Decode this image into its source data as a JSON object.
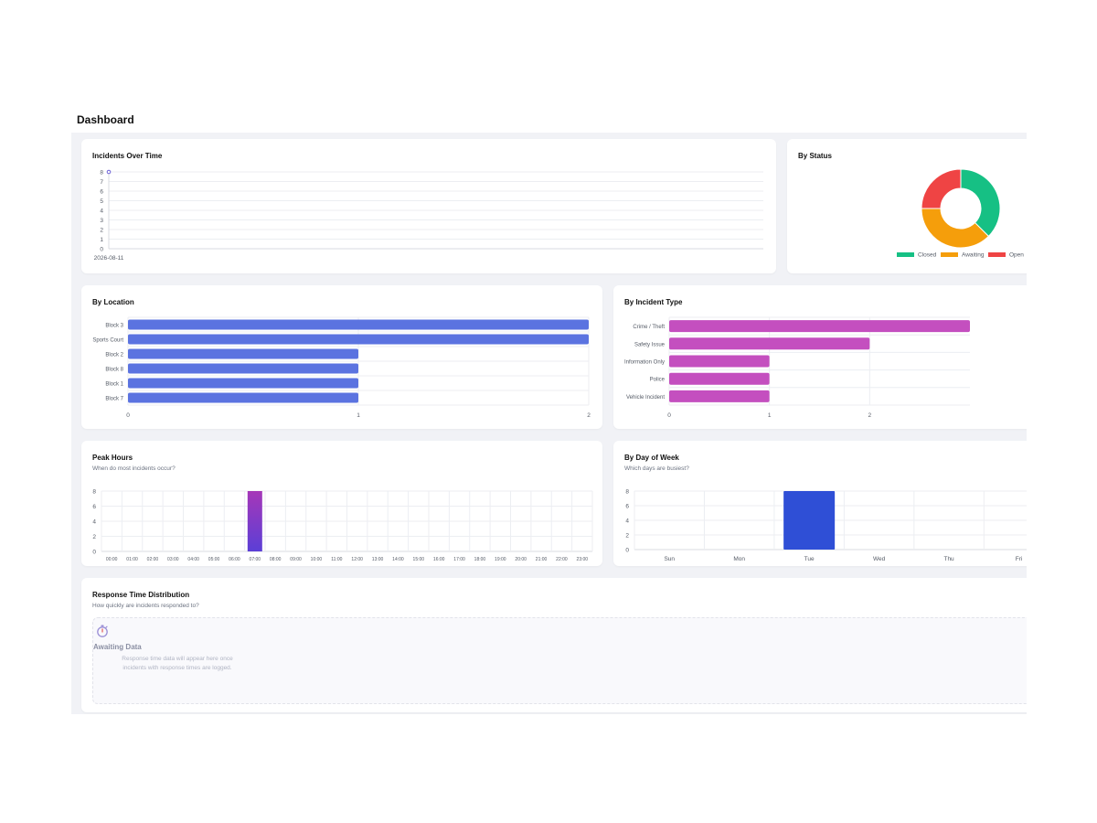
{
  "header": {
    "title": "Dashboard"
  },
  "cards": {
    "incidents_over_time": {
      "title": "Incidents Over Time"
    },
    "by_status": {
      "title": "By Status"
    },
    "by_location": {
      "title": "By Location"
    },
    "by_incident_type": {
      "title": "By Incident Type"
    },
    "peak_hours": {
      "title": "Peak Hours",
      "subtitle": "When do most incidents occur?"
    },
    "by_day_of_week": {
      "title": "By Day of Week",
      "subtitle": "Which days are busiest?"
    },
    "response_time": {
      "title": "Response Time Distribution",
      "subtitle": "How quickly are incidents responded to?",
      "empty_icon": "stopwatch-icon",
      "empty_title": "Awaiting Data",
      "empty_text": "Response time data will appear here once incidents with response times are logged."
    }
  },
  "chart_data": [
    {
      "id": "incidents_over_time",
      "type": "line",
      "x": [
        "2026-08-11"
      ],
      "series": [
        {
          "values": [
            8
          ]
        }
      ],
      "ylim": [
        0,
        8
      ],
      "yticks": [
        0,
        1,
        2,
        3,
        4,
        5,
        6,
        7,
        8
      ],
      "grid": true,
      "color": "#6b5fd6"
    },
    {
      "id": "by_status",
      "type": "pie",
      "labels": [
        "Closed",
        "Awaiting",
        "Open"
      ],
      "values": [
        3,
        3,
        2
      ],
      "colors": [
        "#16c084",
        "#f59e0b",
        "#ef4444"
      ],
      "legend": "bottom"
    },
    {
      "id": "by_location",
      "type": "bar",
      "orientation": "horizontal",
      "categories": [
        "Block 3",
        "Sports Court",
        "Block 2",
        "Block 8",
        "Block 1",
        "Block 7"
      ],
      "values": [
        2,
        2,
        1,
        1,
        1,
        1
      ],
      "xlim": [
        0,
        2
      ],
      "xticks": [
        0,
        1,
        2
      ],
      "color": "#5b73e0"
    },
    {
      "id": "by_incident_type",
      "type": "bar",
      "orientation": "horizontal",
      "categories": [
        "Crime / Theft",
        "Safety Issue",
        "Information Only",
        "Police",
        "Vehicle Incident"
      ],
      "values": [
        3,
        2,
        1,
        1,
        1
      ],
      "xlim": [
        0,
        3
      ],
      "xticks": [
        0,
        1,
        2
      ],
      "color": "#c44fbf"
    },
    {
      "id": "peak_hours",
      "type": "bar",
      "categories": [
        "00:00",
        "01:00",
        "02:00",
        "03:00",
        "04:00",
        "05:00",
        "06:00",
        "07:00",
        "08:00",
        "09:00",
        "10:00",
        "11:00",
        "12:00",
        "13:00",
        "14:00",
        "15:00",
        "16:00",
        "17:00",
        "18:00",
        "19:00",
        "20:00",
        "21:00",
        "22:00",
        "23:00"
      ],
      "values": [
        0,
        0,
        0,
        0,
        0,
        0,
        0,
        8,
        0,
        0,
        0,
        0,
        0,
        0,
        0,
        0,
        0,
        0,
        0,
        0,
        0,
        0,
        0,
        0
      ],
      "ylim": [
        0,
        8
      ],
      "yticks": [
        0,
        2,
        4,
        6,
        8
      ],
      "color_top": "#a637b8",
      "color_bottom": "#5b3fd6"
    },
    {
      "id": "by_day_of_week",
      "type": "bar",
      "categories": [
        "Sun",
        "Mon",
        "Tue",
        "Wed",
        "Thu",
        "Fri"
      ],
      "values": [
        0,
        0,
        8,
        0,
        0,
        0
      ],
      "ylim": [
        0,
        8
      ],
      "yticks": [
        0,
        2,
        4,
        6,
        8
      ],
      "color": "#2f4fd6"
    }
  ]
}
